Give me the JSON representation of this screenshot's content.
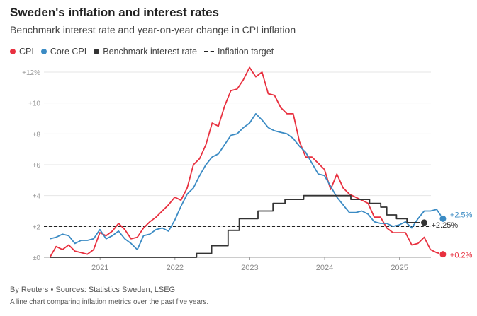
{
  "title": "Sweden's inflation and interest rates",
  "subtitle": "Benchmark interest rate and year-on-year change in CPI inflation",
  "source": "By Reuters • Sources: Statistics Sweden, LSEG",
  "caption": "A line chart comparing inflation metrics over the past five years.",
  "colors": {
    "cpi": "#e8303f",
    "core": "#3b8bc4",
    "rate": "#333333",
    "target": "#222222",
    "grid": "#e6e6e6",
    "axis": "#999999"
  },
  "legend": [
    {
      "label": "CPI",
      "key": "cpi",
      "kind": "dot"
    },
    {
      "label": "Core CPI",
      "key": "core",
      "kind": "dot"
    },
    {
      "label": "Benchmark interest rate",
      "key": "rate",
      "kind": "dot"
    },
    {
      "label": "Inflation target",
      "key": "target",
      "kind": "dash"
    }
  ],
  "chart_data": {
    "type": "line",
    "title": "Sweden's inflation and interest rates",
    "ylim": [
      0,
      12
    ],
    "yticks": [
      {
        "value": 0,
        "label": "±0"
      },
      {
        "value": 2,
        "label": "+2"
      },
      {
        "value": 4,
        "label": "+4"
      },
      {
        "value": 6,
        "label": "+6"
      },
      {
        "value": 8,
        "label": "+8"
      },
      {
        "value": 10,
        "label": "+10"
      },
      {
        "value": 12,
        "label": "+12%"
      }
    ],
    "xrange": [
      2020.25,
      2025.42
    ],
    "xticks": [
      {
        "value": 2021.0,
        "label": "2021"
      },
      {
        "value": 2022.0,
        "label": "2022"
      },
      {
        "value": 2023.0,
        "label": "2023"
      },
      {
        "value": 2024.0,
        "label": "2024"
      },
      {
        "value": 2025.0,
        "label": "2025"
      }
    ],
    "inflation_target": 2.0,
    "series": [
      {
        "name": "CPI",
        "key": "cpi",
        "start": 2020.33,
        "values": [
          0.0,
          0.7,
          0.5,
          0.8,
          0.4,
          0.3,
          0.2,
          0.5,
          1.6,
          1.4,
          1.7,
          2.2,
          1.8,
          1.2,
          1.3,
          1.9,
          2.3,
          2.6,
          3.0,
          3.4,
          3.9,
          3.7,
          4.5,
          6.0,
          6.4,
          7.3,
          8.7,
          8.5,
          9.8,
          10.8,
          10.9,
          11.5,
          12.3,
          11.7,
          12.0,
          10.6,
          10.5,
          9.7,
          9.3,
          9.3,
          7.5,
          6.5,
          6.5,
          6.1,
          5.7,
          4.4,
          5.4,
          4.5,
          4.1,
          3.9,
          3.7,
          3.5,
          2.6,
          2.6,
          1.9,
          1.6,
          1.6,
          1.6,
          0.8,
          0.9,
          1.3,
          0.5,
          0.3,
          0.2
        ]
      },
      {
        "name": "Core CPI",
        "key": "core",
        "start": 2020.33,
        "values": [
          1.2,
          1.3,
          1.5,
          1.4,
          0.9,
          1.1,
          1.1,
          1.2,
          1.8,
          1.2,
          1.4,
          1.7,
          1.2,
          0.9,
          0.5,
          1.4,
          1.5,
          1.8,
          1.9,
          1.7,
          2.4,
          3.3,
          4.1,
          4.5,
          5.3,
          6.0,
          6.5,
          6.7,
          7.3,
          7.9,
          8.0,
          8.4,
          8.7,
          9.3,
          8.9,
          8.4,
          8.2,
          8.1,
          8.0,
          7.7,
          7.2,
          6.8,
          6.1,
          5.4,
          5.3,
          4.6,
          3.9,
          3.4,
          2.9,
          2.9,
          3.0,
          2.8,
          2.3,
          2.2,
          2.2,
          2.0,
          2.1,
          2.3,
          1.9,
          2.5,
          3.0,
          3.0,
          3.1,
          2.5
        ]
      },
      {
        "name": "Benchmark interest rate",
        "key": "rate",
        "kind": "step",
        "points": [
          [
            2020.33,
            0.0
          ],
          [
            2022.29,
            0.25
          ],
          [
            2022.49,
            0.75
          ],
          [
            2022.71,
            1.75
          ],
          [
            2022.86,
            2.5
          ],
          [
            2023.11,
            3.0
          ],
          [
            2023.31,
            3.5
          ],
          [
            2023.47,
            3.75
          ],
          [
            2023.72,
            4.0
          ],
          [
            2024.35,
            3.75
          ],
          [
            2024.6,
            3.5
          ],
          [
            2024.75,
            3.25
          ],
          [
            2024.83,
            2.75
          ],
          [
            2024.96,
            2.5
          ],
          [
            2025.1,
            2.25
          ],
          [
            2025.33,
            2.25
          ]
        ]
      }
    ],
    "annotations": [
      {
        "series": "core",
        "label": "+2.5%",
        "value": 2.5
      },
      {
        "series": "rate",
        "label": "+2.25%",
        "value": 2.25
      },
      {
        "series": "cpi",
        "label": "+0.2%",
        "value": 0.2
      }
    ]
  }
}
